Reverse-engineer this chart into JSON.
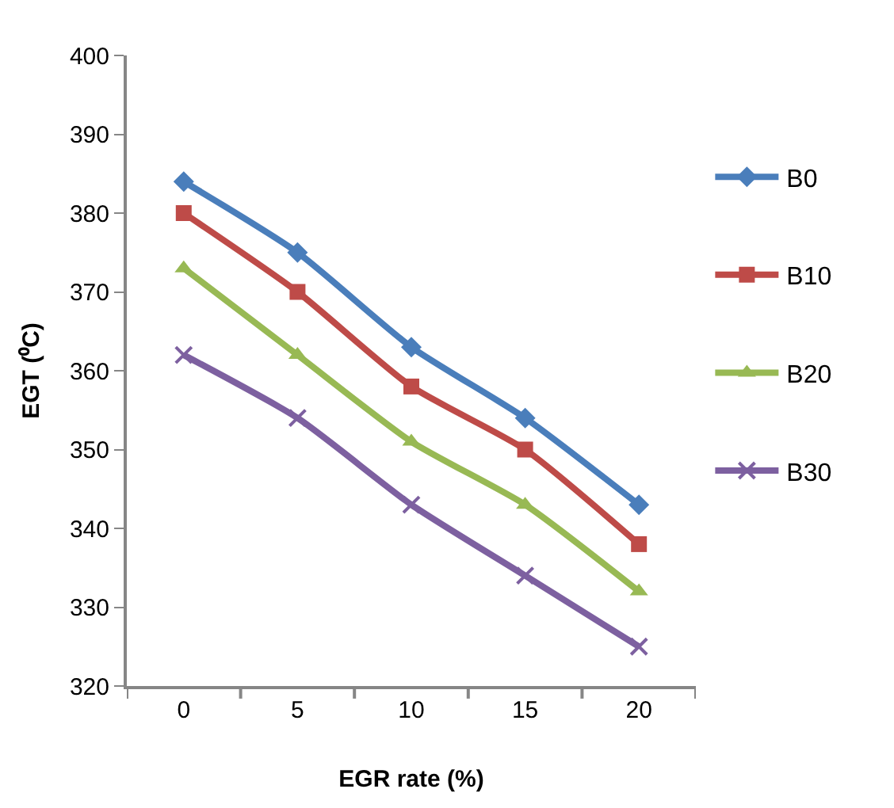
{
  "chart_data": {
    "type": "line",
    "xlabel": "EGR rate (%)",
    "ylabel": "EGT (⁰C)",
    "categories": [
      "0",
      "5",
      "10",
      "15",
      "20"
    ],
    "series": [
      {
        "name": "B0",
        "color": "#4a7ebb",
        "marker": "diamond",
        "values": [
          384,
          375,
          363,
          354,
          343
        ]
      },
      {
        "name": "B10",
        "color": "#be4b48",
        "marker": "square",
        "values": [
          380,
          370,
          358,
          350,
          338
        ]
      },
      {
        "name": "B20",
        "color": "#98b954",
        "marker": "triangle",
        "values": [
          373,
          362,
          351,
          343,
          332
        ]
      },
      {
        "name": "B30",
        "color": "#7d60a0",
        "marker": "cross",
        "values": [
          362,
          354,
          343,
          334,
          325
        ]
      }
    ],
    "ylim": [
      320,
      400
    ],
    "yticks": [
      320,
      330,
      340,
      350,
      360,
      370,
      380,
      390,
      400
    ],
    "legend": "right",
    "line_style": "solid"
  }
}
